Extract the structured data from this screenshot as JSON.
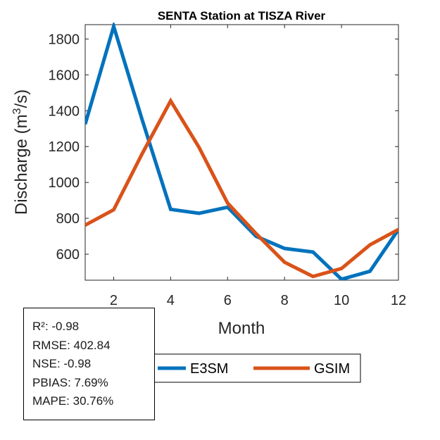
{
  "chart_data": {
    "type": "line",
    "title": "SENTA  Station at  TISZA  River",
    "xlabel": "Month",
    "ylabel": "Discharge (m",
    "ylabel_sup": "3",
    "ylabel_tail": "/s)",
    "xlim": [
      1,
      12
    ],
    "ylim": [
      455,
      1880
    ],
    "xticks": [
      2,
      4,
      6,
      8,
      10,
      12
    ],
    "yticks": [
      600,
      800,
      1000,
      1200,
      1400,
      1600,
      1800
    ],
    "grid": false,
    "legend_position": "bottom",
    "x": [
      1,
      2,
      3,
      4,
      5,
      6,
      7,
      8,
      9,
      10,
      11,
      12
    ],
    "series": [
      {
        "name": "E3SM",
        "color": "#0072BD",
        "values": [
          1325,
          1870,
          1350,
          850,
          828,
          862,
          700,
          632,
          612,
          460,
          505,
          738
        ]
      },
      {
        "name": "GSIM",
        "color": "#D95319",
        "values": [
          762,
          848,
          1160,
          1455,
          1195,
          885,
          715,
          555,
          476,
          520,
          652,
          738
        ]
      }
    ]
  },
  "stats": [
    "R²: -0.98",
    "RMSE: 402.84",
    "NSE: -0.98",
    "PBIAS: 7.69%",
    "MAPE: 30.76%"
  ]
}
